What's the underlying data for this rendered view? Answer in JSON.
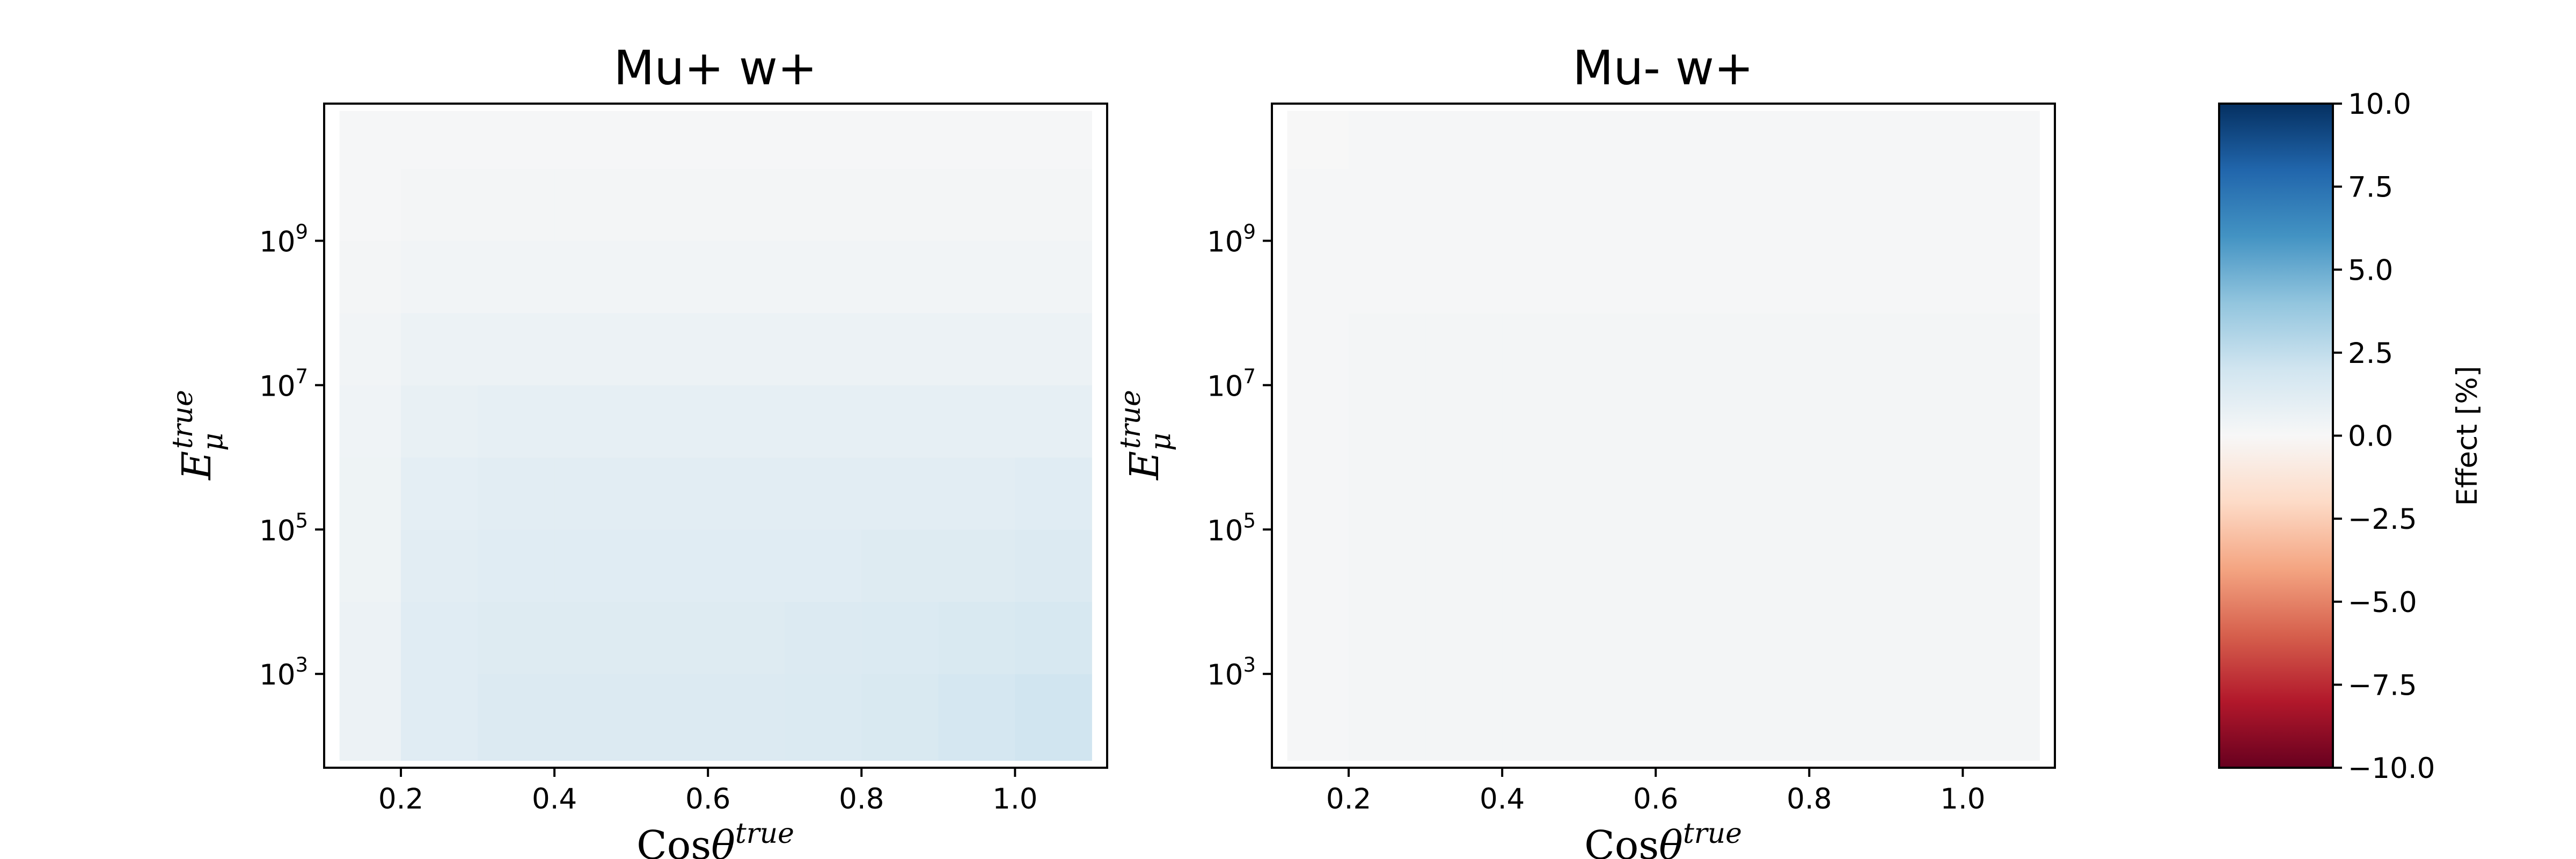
{
  "chart_data": [
    {
      "type": "heatmap",
      "title": "Mu+ w+",
      "xlabel_main": "Cos",
      "xlabel_symbol": "θ",
      "xlabel_sup": "true",
      "ylabel_main": "E",
      "ylabel_sub": "μ",
      "ylabel_sup": "true",
      "xlim": [
        0.1,
        1.12
      ],
      "ylim_log10": [
        1.7,
        10.9
      ],
      "x_ticks": [
        {
          "value": 0.2,
          "label": "0.2"
        },
        {
          "value": 0.4,
          "label": "0.4"
        },
        {
          "value": 0.6,
          "label": "0.6"
        },
        {
          "value": 0.8,
          "label": "0.8"
        },
        {
          "value": 1.0,
          "label": "1.0"
        }
      ],
      "y_ticks": [
        {
          "exp": 3,
          "base": "10",
          "sup": "3"
        },
        {
          "exp": 5,
          "base": "10",
          "sup": "5"
        },
        {
          "exp": 7,
          "base": "10",
          "sup": "7"
        },
        {
          "exp": 9,
          "base": "10",
          "sup": "9"
        }
      ],
      "x_edges": [
        0.12,
        0.2,
        0.3,
        0.4,
        0.5,
        0.6,
        0.7,
        0.8,
        0.9,
        1.0,
        1.1
      ],
      "y_edges_log10": [
        1.8,
        3,
        4,
        5,
        6,
        7,
        8,
        9,
        10,
        10.8
      ],
      "values": [
        [
          0.6,
          1.2,
          1.4,
          1.4,
          1.4,
          1.4,
          1.5,
          1.6,
          1.8,
          2.0
        ],
        [
          0.6,
          1.2,
          1.3,
          1.3,
          1.3,
          1.3,
          1.4,
          1.5,
          1.6,
          1.7
        ],
        [
          0.5,
          1.1,
          1.2,
          1.2,
          1.2,
          1.2,
          1.2,
          1.3,
          1.3,
          1.4
        ],
        [
          0.5,
          1.0,
          1.1,
          1.1,
          1.1,
          1.1,
          1.1,
          1.1,
          1.1,
          1.2
        ],
        [
          0.4,
          0.8,
          0.9,
          0.9,
          0.9,
          0.9,
          0.9,
          0.9,
          0.9,
          0.9
        ],
        [
          0.3,
          0.6,
          0.6,
          0.6,
          0.6,
          0.6,
          0.6,
          0.6,
          0.6,
          0.6
        ],
        [
          0.2,
          0.3,
          0.3,
          0.3,
          0.3,
          0.3,
          0.3,
          0.3,
          0.3,
          0.3
        ],
        [
          0.1,
          0.2,
          0.2,
          0.2,
          0.2,
          0.2,
          0.2,
          0.2,
          0.2,
          0.2
        ],
        [
          0.1,
          0.1,
          0.1,
          0.1,
          0.1,
          0.1,
          0.1,
          0.1,
          0.1,
          0.1
        ]
      ]
    },
    {
      "type": "heatmap",
      "title": "Mu- w+",
      "xlabel_main": "Cos",
      "xlabel_symbol": "θ",
      "xlabel_sup": "true",
      "ylabel_main": "E",
      "ylabel_sub": "μ",
      "ylabel_sup": "true",
      "xlim": [
        0.1,
        1.12
      ],
      "ylim_log10": [
        1.7,
        10.9
      ],
      "x_ticks": [
        {
          "value": 0.2,
          "label": "0.2"
        },
        {
          "value": 0.4,
          "label": "0.4"
        },
        {
          "value": 0.6,
          "label": "0.6"
        },
        {
          "value": 0.8,
          "label": "0.8"
        },
        {
          "value": 1.0,
          "label": "1.0"
        }
      ],
      "y_ticks": [
        {
          "exp": 3,
          "base": "10",
          "sup": "3"
        },
        {
          "exp": 5,
          "base": "10",
          "sup": "5"
        },
        {
          "exp": 7,
          "base": "10",
          "sup": "7"
        },
        {
          "exp": 9,
          "base": "10",
          "sup": "9"
        }
      ],
      "x_edges": [
        0.12,
        0.2,
        0.3,
        0.4,
        0.5,
        0.6,
        0.7,
        0.8,
        0.9,
        1.0,
        1.1
      ],
      "y_edges_log10": [
        1.8,
        3,
        4,
        5,
        6,
        7,
        8,
        9,
        10,
        10.8
      ],
      "values": [
        [
          0.1,
          0.2,
          0.2,
          0.2,
          0.2,
          0.2,
          0.2,
          0.2,
          0.2,
          0.2
        ],
        [
          0.1,
          0.2,
          0.2,
          0.2,
          0.2,
          0.2,
          0.2,
          0.2,
          0.2,
          0.2
        ],
        [
          0.1,
          0.2,
          0.2,
          0.2,
          0.2,
          0.2,
          0.2,
          0.2,
          0.2,
          0.2
        ],
        [
          0.1,
          0.2,
          0.2,
          0.2,
          0.2,
          0.2,
          0.2,
          0.2,
          0.2,
          0.2
        ],
        [
          0.1,
          0.2,
          0.2,
          0.2,
          0.2,
          0.2,
          0.2,
          0.2,
          0.2,
          0.2
        ],
        [
          0.1,
          0.2,
          0.2,
          0.2,
          0.2,
          0.2,
          0.2,
          0.2,
          0.2,
          0.2
        ],
        [
          0.1,
          0.1,
          0.1,
          0.1,
          0.1,
          0.1,
          0.1,
          0.1,
          0.1,
          0.1
        ],
        [
          0.1,
          0.1,
          0.1,
          0.1,
          0.1,
          0.1,
          0.1,
          0.1,
          0.1,
          0.1
        ],
        [
          0.0,
          0.1,
          0.1,
          0.1,
          0.1,
          0.1,
          0.1,
          0.1,
          0.1,
          0.1
        ]
      ]
    }
  ],
  "colorbar": {
    "label": "Effect [%]",
    "range": [
      -10.0,
      10.0
    ],
    "ticks": [
      {
        "value": 10.0,
        "label": "10.0"
      },
      {
        "value": 7.5,
        "label": "7.5"
      },
      {
        "value": 5.0,
        "label": "5.0"
      },
      {
        "value": 2.5,
        "label": "2.5"
      },
      {
        "value": 0.0,
        "label": "0.0"
      },
      {
        "value": -2.5,
        "label": "−2.5"
      },
      {
        "value": -5.0,
        "label": "−5.0"
      },
      {
        "value": -7.5,
        "label": "−7.5"
      },
      {
        "value": -10.0,
        "label": "−10.0"
      }
    ],
    "colormap_stops": [
      "#67001f",
      "#b2182b",
      "#d6604d",
      "#f4a582",
      "#fddbc7",
      "#f7f7f7",
      "#d1e5f0",
      "#92c5de",
      "#4393c3",
      "#2166ac",
      "#053061"
    ]
  }
}
